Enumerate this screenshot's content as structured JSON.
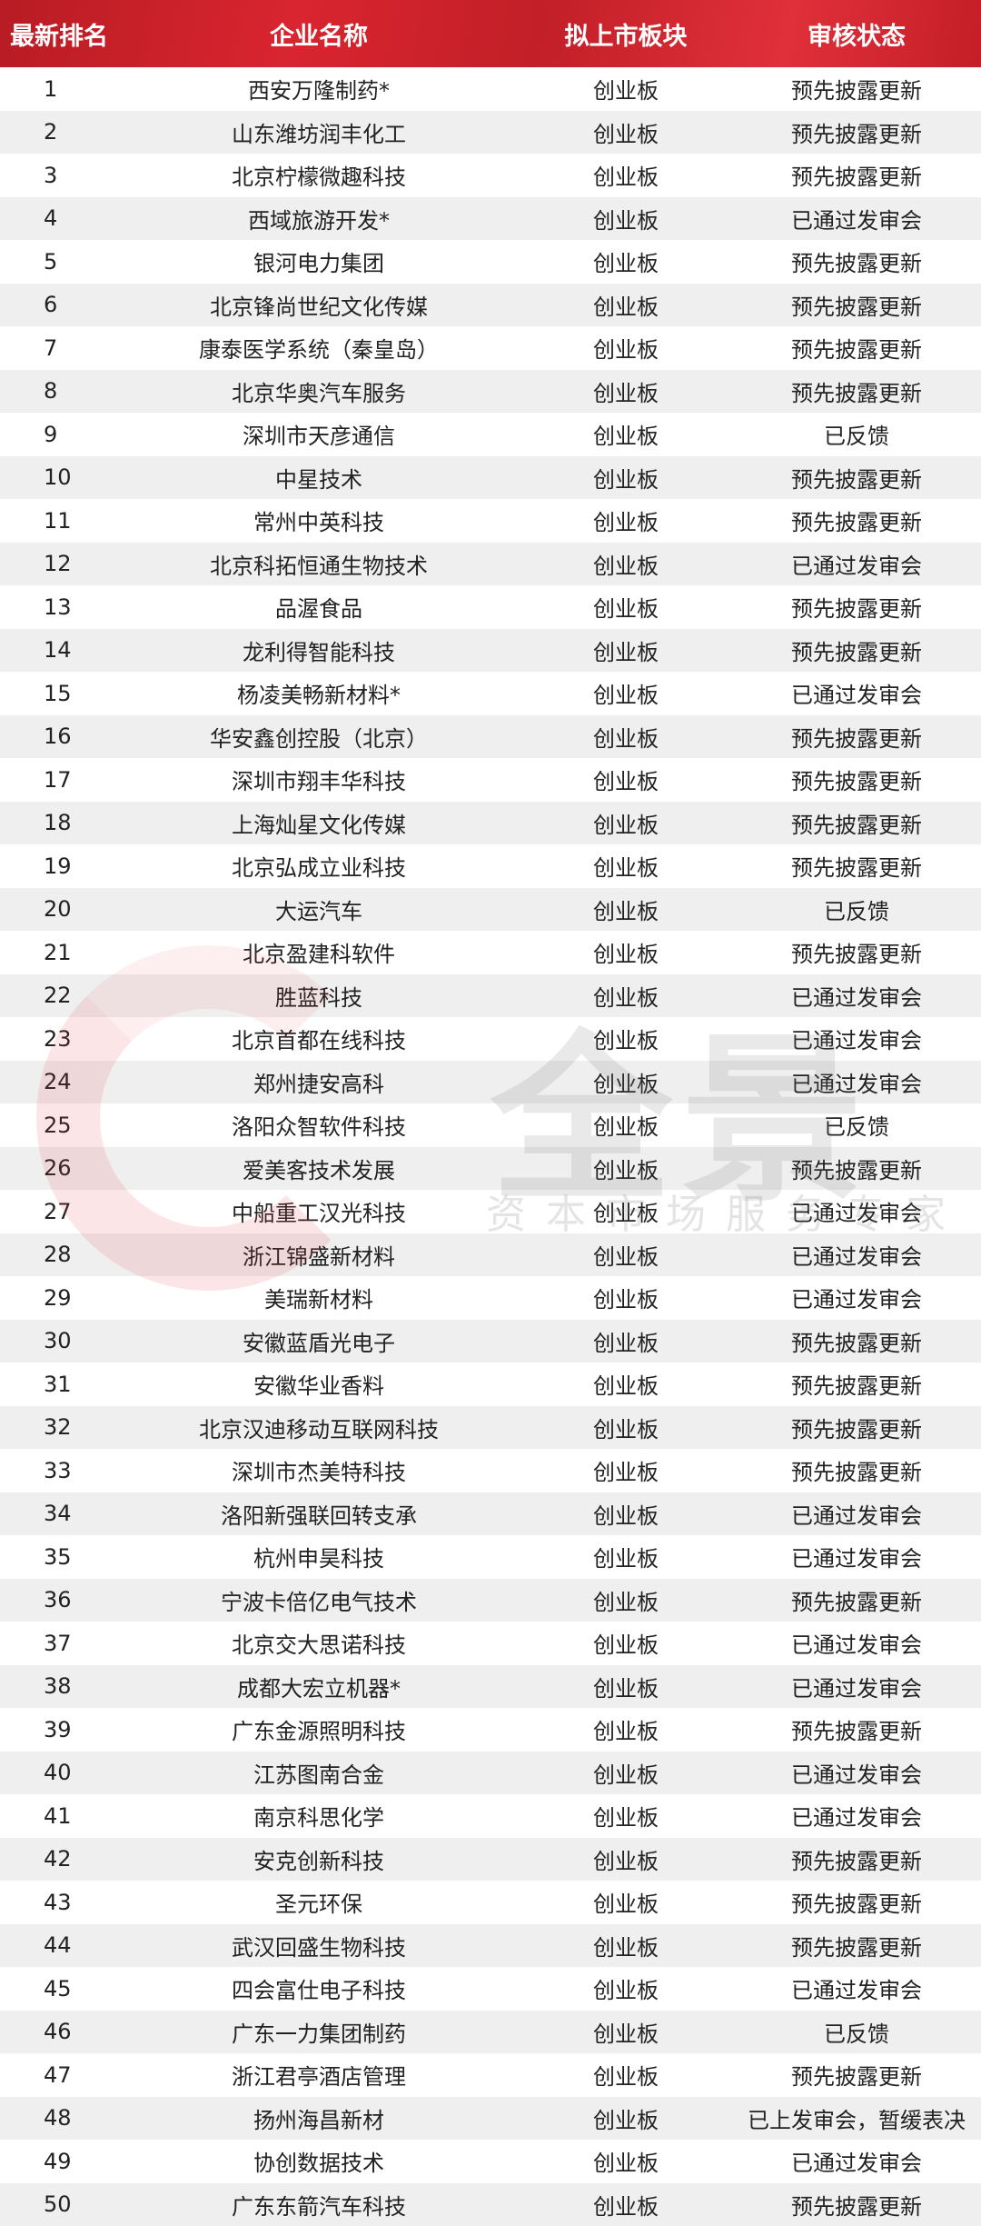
{
  "header": {
    "rank": "最新排名",
    "company": "企业名称",
    "board": "拟上市板块",
    "status": "审核状态"
  },
  "watermark": {
    "logo": "全景",
    "tagline": "资本市场服务专家"
  },
  "colors": {
    "header_bg": "#c8202a",
    "row_alt": "#ececec"
  },
  "rows": [
    {
      "rank": "1",
      "company": "西安万隆制药*",
      "board": "创业板",
      "status": "预先披露更新"
    },
    {
      "rank": "2",
      "company": "山东潍坊润丰化工",
      "board": "创业板",
      "status": "预先披露更新"
    },
    {
      "rank": "3",
      "company": "北京柠檬微趣科技",
      "board": "创业板",
      "status": "预先披露更新"
    },
    {
      "rank": "4",
      "company": "西域旅游开发*",
      "board": "创业板",
      "status": "已通过发审会"
    },
    {
      "rank": "5",
      "company": "银河电力集团",
      "board": "创业板",
      "status": "预先披露更新"
    },
    {
      "rank": "6",
      "company": "北京锋尚世纪文化传媒",
      "board": "创业板",
      "status": "预先披露更新"
    },
    {
      "rank": "7",
      "company": "康泰医学系统（秦皇岛）",
      "board": "创业板",
      "status": "预先披露更新"
    },
    {
      "rank": "8",
      "company": "北京华奥汽车服务",
      "board": "创业板",
      "status": "预先披露更新"
    },
    {
      "rank": "9",
      "company": "深圳市天彦通信",
      "board": "创业板",
      "status": "已反馈"
    },
    {
      "rank": "10",
      "company": "中星技术",
      "board": "创业板",
      "status": "预先披露更新"
    },
    {
      "rank": "11",
      "company": "常州中英科技",
      "board": "创业板",
      "status": "预先披露更新"
    },
    {
      "rank": "12",
      "company": "北京科拓恒通生物技术",
      "board": "创业板",
      "status": "已通过发审会"
    },
    {
      "rank": "13",
      "company": "品渥食品",
      "board": "创业板",
      "status": "预先披露更新"
    },
    {
      "rank": "14",
      "company": "龙利得智能科技",
      "board": "创业板",
      "status": "预先披露更新"
    },
    {
      "rank": "15",
      "company": "杨凌美畅新材料*",
      "board": "创业板",
      "status": "已通过发审会"
    },
    {
      "rank": "16",
      "company": "华安鑫创控股（北京）",
      "board": "创业板",
      "status": "预先披露更新"
    },
    {
      "rank": "17",
      "company": "深圳市翔丰华科技",
      "board": "创业板",
      "status": "预先披露更新"
    },
    {
      "rank": "18",
      "company": "上海灿星文化传媒",
      "board": "创业板",
      "status": "预先披露更新"
    },
    {
      "rank": "19",
      "company": "北京弘成立业科技",
      "board": "创业板",
      "status": "预先披露更新"
    },
    {
      "rank": "20",
      "company": "大运汽车",
      "board": "创业板",
      "status": "已反馈"
    },
    {
      "rank": "21",
      "company": "北京盈建科软件",
      "board": "创业板",
      "status": "预先披露更新"
    },
    {
      "rank": "22",
      "company": "胜蓝科技",
      "board": "创业板",
      "status": "已通过发审会"
    },
    {
      "rank": "23",
      "company": "北京首都在线科技",
      "board": "创业板",
      "status": "已通过发审会"
    },
    {
      "rank": "24",
      "company": "郑州捷安高科",
      "board": "创业板",
      "status": "已通过发审会"
    },
    {
      "rank": "25",
      "company": "洛阳众智软件科技",
      "board": "创业板",
      "status": "已反馈"
    },
    {
      "rank": "26",
      "company": "爱美客技术发展",
      "board": "创业板",
      "status": "预先披露更新"
    },
    {
      "rank": "27",
      "company": "中船重工汉光科技",
      "board": "创业板",
      "status": "已通过发审会"
    },
    {
      "rank": "28",
      "company": "浙江锦盛新材料",
      "board": "创业板",
      "status": "已通过发审会"
    },
    {
      "rank": "29",
      "company": "美瑞新材料",
      "board": "创业板",
      "status": "已通过发审会"
    },
    {
      "rank": "30",
      "company": "安徽蓝盾光电子",
      "board": "创业板",
      "status": "预先披露更新"
    },
    {
      "rank": "31",
      "company": "安徽华业香料",
      "board": "创业板",
      "status": "预先披露更新"
    },
    {
      "rank": "32",
      "company": "北京汉迪移动互联网科技",
      "board": "创业板",
      "status": "预先披露更新"
    },
    {
      "rank": "33",
      "company": "深圳市杰美特科技",
      "board": "创业板",
      "status": "预先披露更新"
    },
    {
      "rank": "34",
      "company": "洛阳新强联回转支承",
      "board": "创业板",
      "status": "已通过发审会"
    },
    {
      "rank": "35",
      "company": "杭州申昊科技",
      "board": "创业板",
      "status": "已通过发审会"
    },
    {
      "rank": "36",
      "company": "宁波卡倍亿电气技术",
      "board": "创业板",
      "status": "预先披露更新"
    },
    {
      "rank": "37",
      "company": "北京交大思诺科技",
      "board": "创业板",
      "status": "已通过发审会"
    },
    {
      "rank": "38",
      "company": "成都大宏立机器*",
      "board": "创业板",
      "status": "已通过发审会"
    },
    {
      "rank": "39",
      "company": "广东金源照明科技",
      "board": "创业板",
      "status": "预先披露更新"
    },
    {
      "rank": "40",
      "company": "江苏图南合金",
      "board": "创业板",
      "status": "已通过发审会"
    },
    {
      "rank": "41",
      "company": "南京科思化学",
      "board": "创业板",
      "status": "已通过发审会"
    },
    {
      "rank": "42",
      "company": "安克创新科技",
      "board": "创业板",
      "status": "预先披露更新"
    },
    {
      "rank": "43",
      "company": "圣元环保",
      "board": "创业板",
      "status": "预先披露更新"
    },
    {
      "rank": "44",
      "company": "武汉回盛生物科技",
      "board": "创业板",
      "status": "预先披露更新"
    },
    {
      "rank": "45",
      "company": "四会富仕电子科技",
      "board": "创业板",
      "status": "已通过发审会"
    },
    {
      "rank": "46",
      "company": "广东一力集团制药",
      "board": "创业板",
      "status": "已反馈"
    },
    {
      "rank": "47",
      "company": "浙江君亭酒店管理",
      "board": "创业板",
      "status": "预先披露更新"
    },
    {
      "rank": "48",
      "company": "扬州海昌新材",
      "board": "创业板",
      "status": "已上发审会，暂缓表决"
    },
    {
      "rank": "49",
      "company": "协创数据技术",
      "board": "创业板",
      "status": "已通过发审会"
    },
    {
      "rank": "50",
      "company": "广东东箭汽车科技",
      "board": "创业板",
      "status": "预先披露更新"
    }
  ]
}
